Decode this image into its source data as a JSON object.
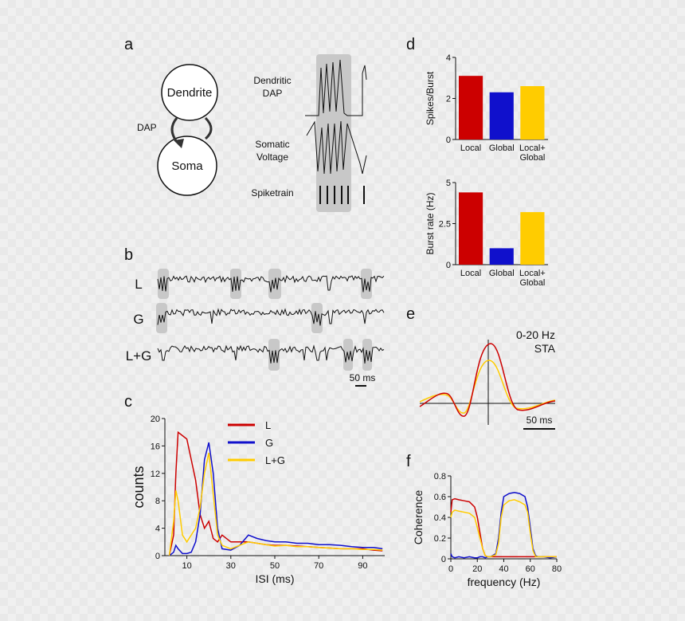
{
  "colors": {
    "red": "#cc0000",
    "blue": "#1010cc",
    "yellow": "#ffcc00",
    "gray": "#c8c8c8"
  },
  "panel_a": {
    "letter": "a",
    "node_top": "Dendrite",
    "node_bottom": "Soma",
    "arrow_label": "DAP",
    "trace_labels": [
      "Dendritic",
      "DAP",
      "Somatic",
      "Voltage",
      "Spiketrain"
    ]
  },
  "panel_b": {
    "letter": "b",
    "rows": [
      {
        "label": "L",
        "color": "#cc0000"
      },
      {
        "label": "G",
        "color": "#1010cc"
      },
      {
        "label": "L+G",
        "color": "#ffcc00"
      }
    ],
    "scale": "50 ms"
  },
  "panel_e": {
    "letter": "e",
    "title_line1": "0-20 Hz",
    "title_line2": "STA",
    "scale": "50 ms"
  },
  "panel_f_letter": "f",
  "chart_data": [
    {
      "id": "c",
      "letter": "c",
      "type": "line",
      "xlabel": "ISI (ms)",
      "ylabel": "counts",
      "xlim": [
        0,
        100
      ],
      "ylim": [
        0,
        20
      ],
      "xticks": [
        10,
        30,
        50,
        70,
        90
      ],
      "yticks": [
        0,
        4,
        8,
        12,
        16,
        20
      ],
      "legend": [
        "L",
        "G",
        "L+G"
      ],
      "x": [
        2,
        4,
        5,
        6,
        8,
        10,
        12,
        14,
        16,
        18,
        20,
        22,
        24,
        26,
        30,
        34,
        38,
        42,
        46,
        50,
        55,
        60,
        65,
        70,
        75,
        80,
        85,
        90,
        95,
        99
      ],
      "series": [
        {
          "name": "L",
          "color": "#cc0000",
          "values": [
            0,
            3,
            12,
            18,
            17.5,
            17,
            14,
            11,
            6,
            4,
            5,
            2.5,
            2,
            3,
            2,
            2,
            2,
            1.8,
            1.6,
            1.5,
            1.5,
            1.4,
            1.3,
            1.2,
            1.1,
            1,
            1,
            1,
            0.8,
            0.7
          ]
        },
        {
          "name": "G",
          "color": "#1010cc",
          "values": [
            0,
            0.5,
            1.5,
            1,
            0.3,
            0.3,
            0.5,
            2,
            6,
            14,
            16.5,
            12,
            4,
            1,
            0.8,
            1.5,
            3,
            2.5,
            2.2,
            2,
            2,
            1.8,
            1.8,
            1.6,
            1.6,
            1.5,
            1.3,
            1.2,
            1.2,
            1
          ]
        },
        {
          "name": "L+G",
          "color": "#ffcc00",
          "values": [
            0,
            5,
            9.5,
            8,
            3,
            2,
            3,
            4,
            7,
            12,
            15,
            9,
            3,
            1.5,
            1,
            1.5,
            2,
            1.8,
            1.6,
            1.4,
            1.5,
            1.3,
            1.3,
            1.2,
            1.1,
            1,
            1,
            0.9,
            0.9,
            0.8
          ]
        }
      ]
    },
    {
      "id": "d1",
      "letter": "d",
      "type": "bar",
      "ylabel": "Spikes/Burst",
      "ylim": [
        0,
        4
      ],
      "yticks": [
        0,
        2,
        4
      ],
      "categories": [
        "Local",
        "Global",
        "Local+ Global"
      ],
      "values": [
        3.1,
        2.3,
        2.6
      ],
      "colors": [
        "#cc0000",
        "#1010cc",
        "#ffcc00"
      ]
    },
    {
      "id": "d2",
      "type": "bar",
      "ylabel": "Burst rate (Hz)",
      "ylim": [
        0,
        5
      ],
      "yticks": [
        0,
        2.5,
        5
      ],
      "categories": [
        "Local",
        "Global",
        "Local+ Global"
      ],
      "values": [
        4.4,
        1.0,
        3.2
      ],
      "colors": [
        "#cc0000",
        "#1010cc",
        "#ffcc00"
      ]
    },
    {
      "id": "f",
      "type": "line",
      "xlabel": "frequency (Hz)",
      "ylabel": "Coherence",
      "xlim": [
        0,
        80
      ],
      "ylim": [
        0,
        0.8
      ],
      "xticks": [
        0,
        20,
        40,
        60,
        80
      ],
      "yticks": [
        0,
        0.2,
        0.4,
        0.6,
        0.8
      ],
      "x": [
        0,
        1,
        3,
        6,
        10,
        14,
        18,
        20,
        22,
        24,
        26,
        28,
        30,
        34,
        36,
        38,
        40,
        44,
        48,
        52,
        56,
        58,
        60,
        62,
        64,
        66,
        70,
        75,
        80
      ],
      "series": [
        {
          "name": "L",
          "color": "#cc0000",
          "values": [
            0.45,
            0.57,
            0.58,
            0.57,
            0.56,
            0.55,
            0.5,
            0.4,
            0.25,
            0.1,
            0.03,
            0.02,
            0.02,
            0.02,
            0.02,
            0.02,
            0.02,
            0.02,
            0.02,
            0.02,
            0.02,
            0.02,
            0.02,
            0.02,
            0.02,
            0.02,
            0.02,
            0.02,
            0.02
          ]
        },
        {
          "name": "G",
          "color": "#1010cc",
          "values": [
            0.05,
            0.02,
            0.01,
            0.02,
            0.01,
            0.02,
            0.01,
            0.01,
            0.02,
            0.02,
            0.01,
            0.02,
            0.02,
            0.05,
            0.2,
            0.45,
            0.6,
            0.63,
            0.64,
            0.63,
            0.6,
            0.5,
            0.3,
            0.1,
            0.03,
            0.02,
            0.02,
            0.01,
            0.02
          ]
        },
        {
          "name": "L+G",
          "color": "#ffcc00",
          "values": [
            0.4,
            0.45,
            0.47,
            0.46,
            0.45,
            0.44,
            0.4,
            0.3,
            0.2,
            0.1,
            0.03,
            0.02,
            0.02,
            0.04,
            0.15,
            0.4,
            0.52,
            0.56,
            0.57,
            0.55,
            0.52,
            0.45,
            0.25,
            0.08,
            0.02,
            0.02,
            0.02,
            0.02,
            0.02
          ]
        }
      ]
    }
  ]
}
